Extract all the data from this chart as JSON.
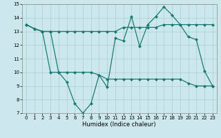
{
  "xlabel": "Humidex (Indice chaleur)",
  "xlim": [
    -0.5,
    23.5
  ],
  "ylim": [
    7,
    15
  ],
  "yticks": [
    7,
    8,
    9,
    10,
    11,
    12,
    13,
    14,
    15
  ],
  "xticks": [
    0,
    1,
    2,
    3,
    4,
    5,
    6,
    7,
    8,
    9,
    10,
    11,
    12,
    13,
    14,
    15,
    16,
    17,
    18,
    19,
    20,
    21,
    22,
    23
  ],
  "bg_color": "#cce8ec",
  "grid_color": "#aacdd4",
  "line_color": "#1a7a72",
  "line1_x": [
    0,
    1,
    2,
    3,
    4,
    5,
    6,
    7,
    8,
    9,
    10,
    11,
    12,
    13,
    14,
    15,
    16,
    17,
    18,
    19,
    20,
    21,
    22,
    23
  ],
  "line1_y": [
    13.5,
    13.2,
    13.0,
    13.0,
    10.0,
    9.3,
    7.7,
    7.0,
    7.7,
    9.8,
    8.9,
    12.5,
    12.3,
    14.1,
    11.9,
    13.5,
    14.1,
    14.8,
    14.2,
    13.5,
    12.6,
    12.4,
    10.1,
    9.0
  ],
  "line2_x": [
    0,
    1,
    2,
    3,
    4,
    5,
    6,
    7,
    8,
    9,
    10,
    11,
    12,
    13,
    14,
    15,
    16,
    17,
    18,
    19,
    20,
    21,
    22,
    23
  ],
  "line2_y": [
    13.5,
    13.2,
    13.0,
    13.0,
    13.0,
    13.0,
    13.0,
    13.0,
    13.0,
    13.0,
    13.0,
    13.0,
    13.3,
    13.3,
    13.3,
    13.3,
    13.3,
    13.5,
    13.5,
    13.5,
    13.5,
    13.5,
    13.5,
    13.5
  ],
  "line3_x": [
    0,
    1,
    2,
    3,
    4,
    5,
    6,
    7,
    8,
    9,
    10,
    11,
    12,
    13,
    14,
    15,
    16,
    17,
    18,
    19,
    20,
    21,
    22,
    23
  ],
  "line3_y": [
    13.5,
    13.2,
    13.0,
    10.0,
    10.0,
    10.0,
    10.0,
    10.0,
    10.0,
    9.8,
    9.5,
    9.5,
    9.5,
    9.5,
    9.5,
    9.5,
    9.5,
    9.5,
    9.5,
    9.5,
    9.2,
    9.0,
    9.0,
    9.0
  ]
}
